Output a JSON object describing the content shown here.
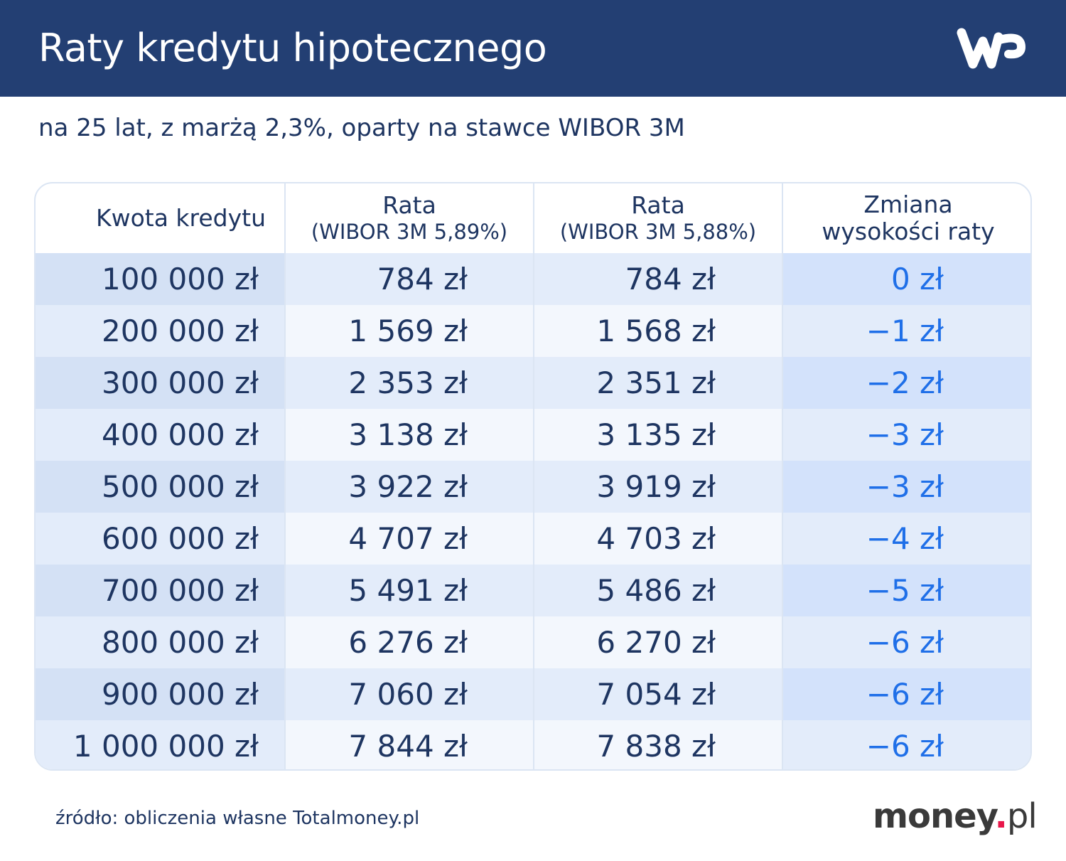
{
  "header": {
    "title": "Raty kredytu hipotecznego",
    "logo": "WP"
  },
  "subtitle": "na 25 lat, z marżą 2,3%, oparty na stawce WIBOR 3M",
  "colors": {
    "header_bg": "#233f73",
    "text": "#1e3561",
    "change_text": "#1f6fe8",
    "money_dot": "#e8174a"
  },
  "chart_data": {
    "type": "table",
    "columns": [
      {
        "line1": "Kwota kredytu",
        "line2": ""
      },
      {
        "line1": "Rata",
        "line2": "(WIBOR 3M 5,89%)"
      },
      {
        "line1": "Rata",
        "line2": "(WIBOR 3M 5,88%)"
      },
      {
        "line1": "Zmiana",
        "line2": "wysokości raty"
      }
    ],
    "rows": [
      [
        "100 000 zł",
        "784 zł",
        "784 zł",
        "0 zł"
      ],
      [
        "200 000 zł",
        "1 569 zł",
        "1 568 zł",
        "−1 zł"
      ],
      [
        "300 000 zł",
        "2 353 zł",
        "2 351 zł",
        "−2 zł"
      ],
      [
        "400 000 zł",
        "3 138 zł",
        "3 135 zł",
        "−3 zł"
      ],
      [
        "500 000 zł",
        "3 922 zł",
        "3 919 zł",
        "−3 zł"
      ],
      [
        "600 000 zł",
        "4 707 zł",
        "4 703 zł",
        "−4 zł"
      ],
      [
        "700 000 zł",
        "5 491 zł",
        "5 486 zł",
        "−5 zł"
      ],
      [
        "800 000 zł",
        "6 276 zł",
        "6 270 zł",
        "−6 zł"
      ],
      [
        "900 000 zł",
        "7 060 zł",
        "7 054 zł",
        "−6 zł"
      ],
      [
        "1 000 000 zł",
        "7 844 zł",
        "7 838 zł",
        "−6 zł"
      ]
    ]
  },
  "footer": {
    "source": "źródło: obliczenia własne Totalmoney.pl",
    "brand_main": "money",
    "brand_dot": ".",
    "brand_tld": "pl"
  }
}
